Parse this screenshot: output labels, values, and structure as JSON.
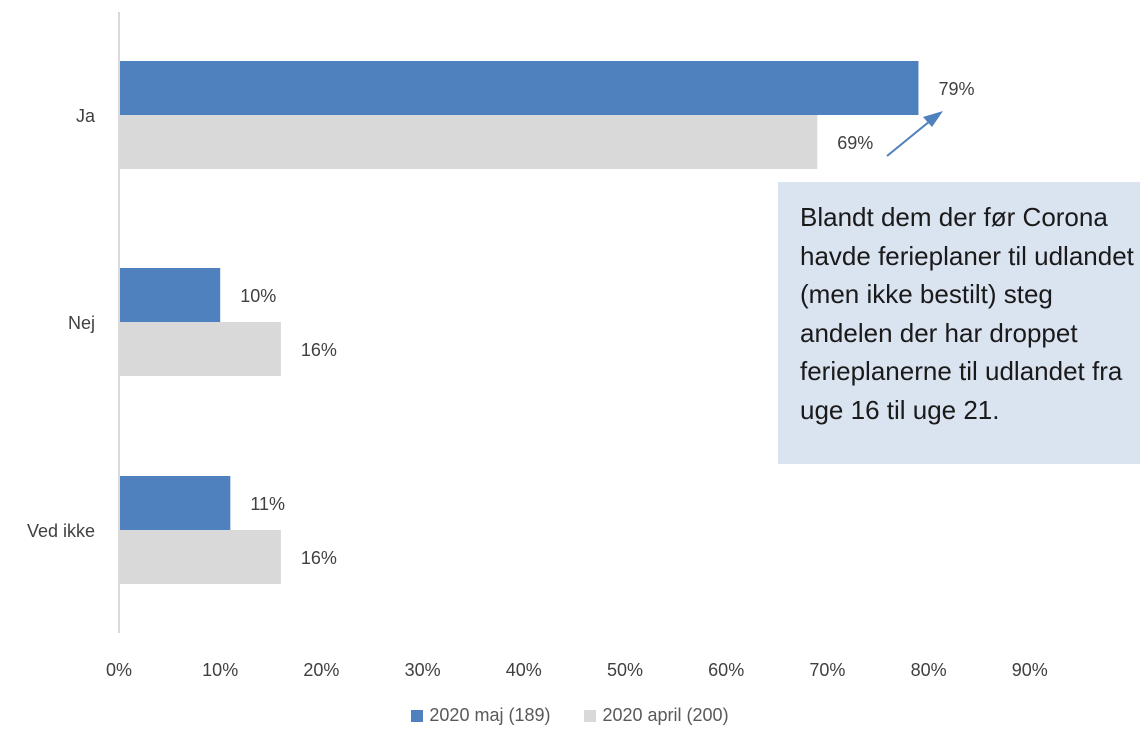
{
  "chart_data": {
    "type": "bar",
    "orientation": "horizontal",
    "categories": [
      "Ja",
      "Nej",
      "Ved ikke"
    ],
    "series": [
      {
        "name": "2020 maj (189)",
        "values": [
          79,
          10,
          11
        ],
        "labels": [
          "79%",
          "10%",
          "11%"
        ],
        "color": "#4e81bd"
      },
      {
        "name": "2020 april (200)",
        "values": [
          69,
          16,
          16
        ],
        "labels": [
          "69%",
          "16%",
          "16%"
        ],
        "color": "#d9d9d9"
      }
    ],
    "xlim": [
      0,
      100
    ],
    "xticks": [
      0,
      10,
      20,
      30,
      40,
      50,
      60,
      70,
      80,
      90
    ],
    "xtick_labels": [
      "0%",
      "10%",
      "20%",
      "30%",
      "40%",
      "50%",
      "60%",
      "70%",
      "80%",
      "90%"
    ],
    "grid": false,
    "legend_position": "bottom",
    "annotation": {
      "text": "Blandt dem der før Corona havde ferieplaner til udlandet (men ikke bestilt) steg andelen der har droppet ferieplanerne til udlandet fra uge 16 til uge 21.",
      "background": "#dae3f0",
      "arrow_color": "#4e81bd"
    }
  }
}
